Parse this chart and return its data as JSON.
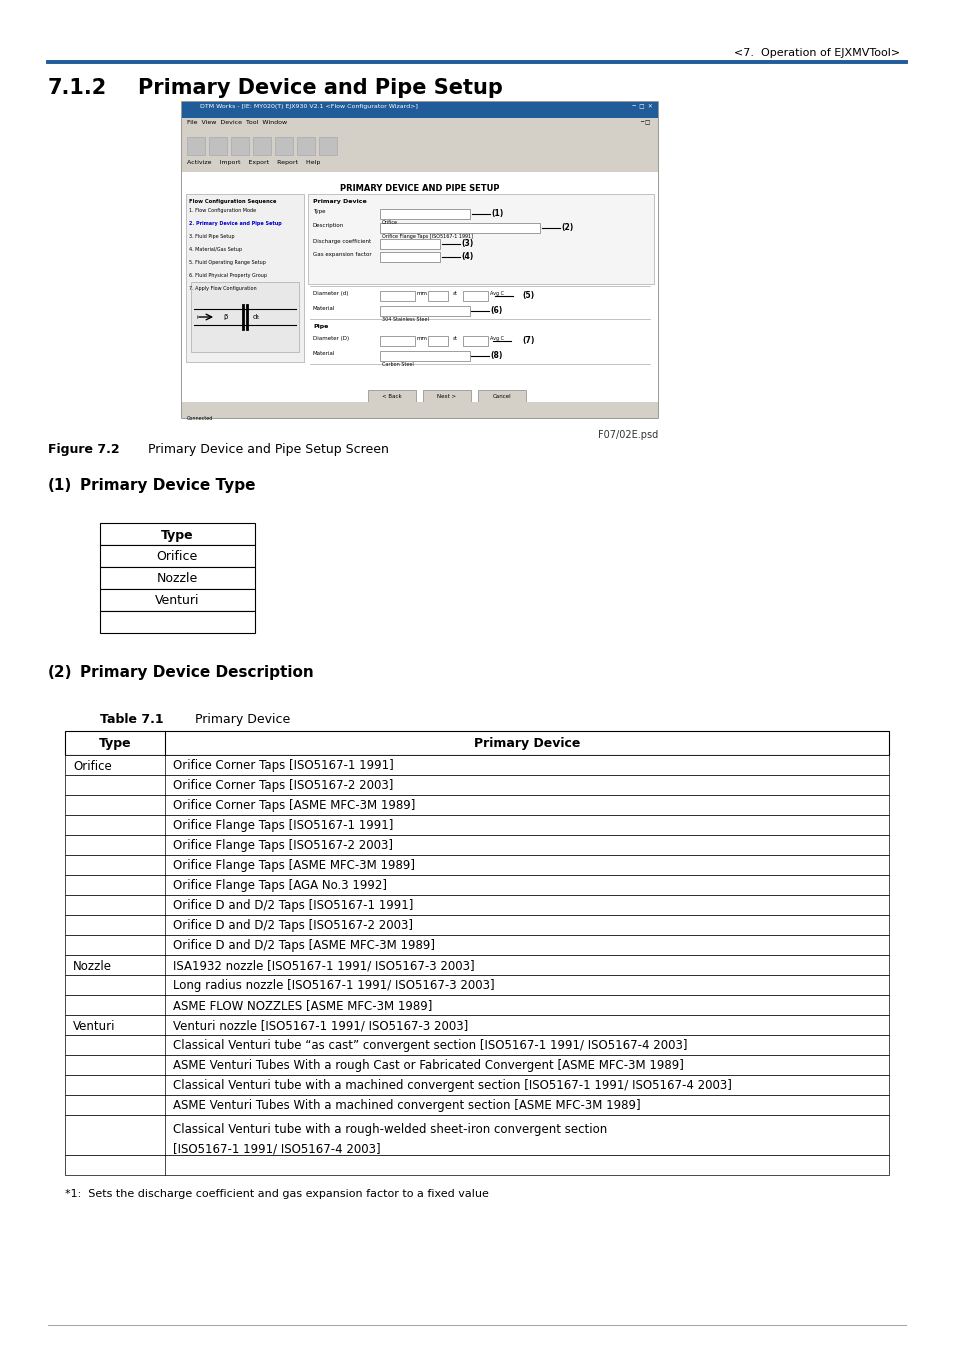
{
  "page_header": "<7.  Operation of EJXMVTool>",
  "header_line_color": "#1f5c99",
  "section_number": "7.1.2",
  "section_title": "Primary Device and Pipe Setup",
  "figure_label": "Figure 7.2",
  "figure_caption_text": "Primary Device and Pipe Setup Screen",
  "sub1_number": "(1)",
  "sub1_title": "Primary Device Type",
  "type_table_header": "Type",
  "type_table_rows": [
    "Orifice",
    "Nozzle",
    "Venturi",
    ""
  ],
  "sub2_number": "(2)",
  "sub2_title": "Primary Device Description",
  "table_label": "Table 7.1",
  "table_title": "Primary Device",
  "main_table_col1_header": "Type",
  "main_table_col2_header": "Primary Device",
  "main_table_data": [
    [
      "Orifice",
      "Orifice Corner Taps [ISO5167-1 1991]"
    ],
    [
      "",
      "Orifice Corner Taps [ISO5167-2 2003]"
    ],
    [
      "",
      "Orifice Corner Taps [ASME MFC-3M 1989]"
    ],
    [
      "",
      "Orifice Flange Taps [ISO5167-1 1991]"
    ],
    [
      "",
      "Orifice Flange Taps [ISO5167-2 2003]"
    ],
    [
      "",
      "Orifice Flange Taps [ASME MFC-3M 1989]"
    ],
    [
      "",
      "Orifice Flange Taps [AGA No.3 1992]"
    ],
    [
      "",
      "Orifice D and D/2 Taps [ISO5167-1 1991]"
    ],
    [
      "",
      "Orifice D and D/2 Taps [ISO5167-2 2003]"
    ],
    [
      "",
      "Orifice D and D/2 Taps [ASME MFC-3M 1989]"
    ],
    [
      "Nozzle",
      "ISA1932 nozzle [ISO5167-1 1991/ ISO5167-3 2003]"
    ],
    [
      "",
      "Long radius nozzle [ISO5167-1 1991/ ISO5167-3 2003]"
    ],
    [
      "",
      "ASME FLOW NOZZLES [ASME MFC-3M 1989]"
    ],
    [
      "Venturi",
      "Venturi nozzle [ISO5167-1 1991/ ISO5167-3 2003]"
    ],
    [
      "",
      "Classical Venturi tube “as cast” convergent section [ISO5167-1 1991/ ISO5167-4 2003]"
    ],
    [
      "",
      "ASME Venturi Tubes With a rough Cast or Fabricated Convergent [ASME MFC-3M 1989]"
    ],
    [
      "",
      "Classical Venturi tube with a machined convergent section [ISO5167-1 1991/ ISO5167-4 2003]"
    ],
    [
      "",
      "ASME Venturi Tubes With a machined convergent section [ASME MFC-3M 1989]"
    ],
    [
      "",
      "Classical Venturi tube with a rough-welded sheet-iron convergent section\n[ISO5167-1 1991/ ISO5167-4 2003]"
    ],
    [
      "",
      ""
    ]
  ],
  "footnote": "*1:  Sets the discharge coefficient and gas expansion factor to a fixed value",
  "bg_color": "#ffffff",
  "screenshot_title": "DTM Works - [IE: MY020(T) EJX930 V2.1 <Flow Configurator Wizard>]",
  "screenshot_menu": "File  View  Device  Tool  Window",
  "screenshot_tabs": "Activize    Import    Export    Report    Help",
  "screen_heading": "PRIMARY DEVICE AND PIPE SETUP",
  "left_panel_title": "Flow Configuration Sequence",
  "left_panel_items": [
    "1. Flow Configuration Mode",
    "2. Primary Device and Pipe Setup",
    "3. Fluid Pipe Setup",
    "4. Material/Gas Setup",
    "5. Fluid Operating Range Setup",
    "6. Fluid Physical Property Group",
    "7. Apply Flow Configuration"
  ],
  "form_fields": [
    [
      "Type",
      "Orifice",
      "(1)"
    ],
    [
      "Description",
      "Orifice Flange Taps [ISO5167-1 1991]",
      "(2)"
    ],
    [
      "Discharge coefficient",
      "",
      "(3)"
    ],
    [
      "Gas expansion factor",
      "",
      "(4)"
    ]
  ],
  "file_ref": "F07/02E.psd"
}
